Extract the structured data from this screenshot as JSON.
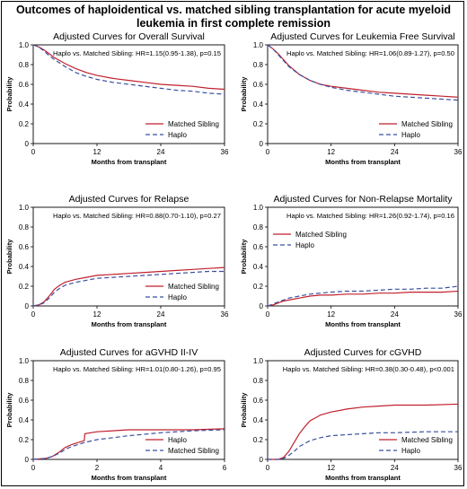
{
  "figure": {
    "title_line1": "Outcomes of haploidentical vs. matched sibling transplantation for acute myeloid",
    "title_line2": "leukemia in first complete remission"
  },
  "colors": {
    "matched_sibling": "#c0202e",
    "haplo": "#3a4fa0",
    "axis": "#000000"
  },
  "chart_data": [
    {
      "type": "line",
      "title": "Adjusted Curves for Overall Survival",
      "annotation": "Haplo vs. Matched Sibling: HR=1.15(0.95-1.38), p=0.15",
      "xlabel": "Months from transplant",
      "ylabel": "Probability",
      "xlim": [
        0,
        36
      ],
      "ylim": [
        0,
        1
      ],
      "xticks": [
        0,
        12,
        24,
        36
      ],
      "yticks": [
        0,
        0.2,
        0.4,
        0.6,
        0.8,
        1.0
      ],
      "ytick_labels": [
        "0",
        "0.2",
        "0.4",
        "0.6",
        "0.8",
        "1.0"
      ],
      "legend_position": "bottom-right",
      "legend_order": [
        "Matched Sibling",
        "Haplo"
      ],
      "series": [
        {
          "name": "Matched Sibling",
          "style": "solid",
          "color": "#c0202e",
          "x": [
            0,
            1,
            2,
            3,
            4,
            6,
            8,
            10,
            12,
            15,
            18,
            21,
            24,
            27,
            30,
            33,
            36
          ],
          "y": [
            1.0,
            0.98,
            0.95,
            0.91,
            0.87,
            0.81,
            0.76,
            0.72,
            0.69,
            0.66,
            0.64,
            0.62,
            0.6,
            0.59,
            0.58,
            0.56,
            0.55
          ]
        },
        {
          "name": "Haplo",
          "style": "dashed",
          "color": "#3a4fa0",
          "x": [
            0,
            1,
            2,
            3,
            4,
            6,
            8,
            10,
            12,
            15,
            18,
            21,
            24,
            27,
            30,
            33,
            36
          ],
          "y": [
            1.0,
            0.98,
            0.94,
            0.89,
            0.85,
            0.78,
            0.72,
            0.68,
            0.65,
            0.62,
            0.6,
            0.58,
            0.56,
            0.54,
            0.53,
            0.51,
            0.5
          ]
        }
      ]
    },
    {
      "type": "line",
      "title": "Adjusted Curves for Leukemia Free Survival",
      "annotation": "Haplo vs. Matched Sibling: HR=1.06(0.89-1.27), p=0.50",
      "xlabel": "Months from transplant",
      "ylabel": "Probability",
      "xlim": [
        0,
        36
      ],
      "ylim": [
        0,
        1
      ],
      "xticks": [
        0,
        12,
        24,
        36
      ],
      "yticks": [
        0,
        0.2,
        0.4,
        0.6,
        0.8,
        1.0
      ],
      "ytick_labels": [
        "0",
        "0.2",
        "0.4",
        "0.6",
        "0.8",
        "1.0"
      ],
      "legend_position": "bottom-right",
      "legend_order": [
        "Matched Sibling",
        "Haplo"
      ],
      "series": [
        {
          "name": "Matched Sibling",
          "style": "solid",
          "color": "#c0202e",
          "x": [
            0,
            1,
            2,
            3,
            4,
            6,
            8,
            10,
            12,
            15,
            18,
            21,
            24,
            27,
            30,
            33,
            36
          ],
          "y": [
            1.0,
            0.96,
            0.91,
            0.85,
            0.79,
            0.7,
            0.64,
            0.6,
            0.58,
            0.56,
            0.54,
            0.52,
            0.51,
            0.5,
            0.49,
            0.48,
            0.47
          ]
        },
        {
          "name": "Haplo",
          "style": "dashed",
          "color": "#3a4fa0",
          "x": [
            0,
            1,
            2,
            3,
            4,
            6,
            8,
            10,
            12,
            15,
            18,
            21,
            24,
            27,
            30,
            33,
            36
          ],
          "y": [
            1.0,
            0.96,
            0.9,
            0.84,
            0.78,
            0.7,
            0.64,
            0.6,
            0.57,
            0.54,
            0.52,
            0.5,
            0.48,
            0.47,
            0.46,
            0.45,
            0.44
          ]
        }
      ]
    },
    {
      "type": "line",
      "title": "Adjusted Curves for Relapse",
      "annotation": "Haplo vs. Matched Sibling: HR=0.88(0.70-1.10), p=0.27",
      "xlabel": "Months from transplant",
      "ylabel": "Probability",
      "xlim": [
        0,
        36
      ],
      "ylim": [
        0,
        1
      ],
      "xticks": [
        0,
        12,
        24,
        36
      ],
      "yticks": [
        0,
        0.2,
        0.4,
        0.6,
        0.8,
        1.0
      ],
      "ytick_labels": [
        "0",
        "0.2",
        "0.4",
        "0.6",
        "0.8",
        "1.0"
      ],
      "legend_position": "bottom-right",
      "legend_order": [
        "Matched Sibling",
        "Haplo"
      ],
      "series": [
        {
          "name": "Matched Sibling",
          "style": "solid",
          "color": "#c0202e",
          "x": [
            0,
            1,
            2,
            3,
            4,
            5,
            6,
            8,
            10,
            12,
            15,
            18,
            21,
            24,
            27,
            30,
            33,
            36
          ],
          "y": [
            0,
            0.01,
            0.04,
            0.1,
            0.17,
            0.21,
            0.24,
            0.27,
            0.29,
            0.31,
            0.32,
            0.33,
            0.34,
            0.35,
            0.36,
            0.37,
            0.38,
            0.39
          ]
        },
        {
          "name": "Haplo",
          "style": "dashed",
          "color": "#3a4fa0",
          "x": [
            0,
            1,
            2,
            3,
            4,
            5,
            6,
            8,
            10,
            12,
            15,
            18,
            21,
            24,
            27,
            30,
            33,
            36
          ],
          "y": [
            0,
            0.01,
            0.03,
            0.08,
            0.14,
            0.18,
            0.21,
            0.24,
            0.26,
            0.28,
            0.29,
            0.3,
            0.31,
            0.32,
            0.33,
            0.34,
            0.35,
            0.35
          ]
        }
      ]
    },
    {
      "type": "line",
      "title": "Adjusted Curves for Non-Relapse Mortality",
      "annotation": "Haplo vs. Matched Sibling: HR=1.26(0.92-1.74), p=0.16",
      "xlabel": "Months from transplant",
      "ylabel": "Probability",
      "xlim": [
        0,
        36
      ],
      "ylim": [
        0,
        1
      ],
      "xticks": [
        0,
        12,
        24,
        36
      ],
      "yticks": [
        0,
        0.2,
        0.4,
        0.6,
        0.8,
        1.0
      ],
      "ytick_labels": [
        "0",
        "0.2",
        "0.4",
        "0.6",
        "0.8",
        "1.0"
      ],
      "legend_position": "top-left",
      "legend_order": [
        "Matched Sibling",
        "Haplo"
      ],
      "series": [
        {
          "name": "Matched Sibling",
          "style": "solid",
          "color": "#c0202e",
          "x": [
            0,
            1,
            2,
            3,
            4,
            6,
            8,
            10,
            12,
            15,
            18,
            21,
            24,
            27,
            30,
            33,
            36
          ],
          "y": [
            0,
            0.01,
            0.03,
            0.05,
            0.06,
            0.08,
            0.1,
            0.11,
            0.11,
            0.12,
            0.12,
            0.13,
            0.13,
            0.14,
            0.14,
            0.14,
            0.15
          ]
        },
        {
          "name": "Haplo",
          "style": "dashed",
          "color": "#3a4fa0",
          "x": [
            0,
            1,
            2,
            3,
            4,
            6,
            8,
            10,
            12,
            15,
            18,
            21,
            24,
            27,
            30,
            33,
            36
          ],
          "y": [
            0,
            0.02,
            0.04,
            0.06,
            0.08,
            0.1,
            0.12,
            0.13,
            0.14,
            0.15,
            0.15,
            0.16,
            0.17,
            0.17,
            0.18,
            0.18,
            0.2
          ]
        }
      ]
    },
    {
      "type": "line",
      "title": "Adjusted Curves for aGVHD II-IV",
      "annotation": "Haplo vs. Matched Sibling: HR=1.01(0.80-1.26), p=0.95",
      "xlabel": "Months from transplant",
      "ylabel": "Probability",
      "xlim": [
        0,
        6
      ],
      "ylim": [
        0,
        1
      ],
      "xticks": [
        0,
        2,
        4,
        6
      ],
      "yticks": [
        0,
        0.2,
        0.4,
        0.6,
        0.8,
        1.0
      ],
      "ytick_labels": [
        "0",
        "0.2",
        "0.4",
        "0.6",
        "0.8",
        "1.0"
      ],
      "legend_position": "bottom-right",
      "legend_order": [
        "Haplo",
        "Matched Sibling"
      ],
      "series": [
        {
          "name": "Haplo",
          "style": "solid",
          "color": "#c0202e",
          "x": [
            0,
            0.4,
            0.6,
            0.8,
            1.0,
            1.2,
            1.4,
            1.6,
            1.62,
            2.0,
            2.5,
            3.0,
            4.0,
            5.0,
            6.0
          ],
          "y": [
            0,
            0.01,
            0.03,
            0.07,
            0.12,
            0.15,
            0.17,
            0.19,
            0.26,
            0.28,
            0.29,
            0.3,
            0.3,
            0.3,
            0.31
          ]
        },
        {
          "name": "Matched Sibling",
          "style": "dashed",
          "color": "#3a4fa0",
          "x": [
            0,
            0.4,
            0.6,
            0.8,
            1.0,
            1.2,
            1.4,
            1.6,
            2.0,
            2.5,
            3.0,
            4.0,
            5.0,
            6.0
          ],
          "y": [
            0,
            0.01,
            0.03,
            0.06,
            0.1,
            0.13,
            0.15,
            0.17,
            0.2,
            0.22,
            0.24,
            0.27,
            0.29,
            0.3
          ]
        }
      ]
    },
    {
      "type": "line",
      "title": "Adjusted Curves for cGVHD",
      "annotation": "Haplo vs. Matched Sibling: HR=0.38(0.30-0.48), p<0.001",
      "xlabel": "Months from transplant",
      "ylabel": "Probability",
      "xlim": [
        0,
        36
      ],
      "ylim": [
        0,
        1
      ],
      "xticks": [
        0,
        12,
        24,
        36
      ],
      "yticks": [
        0,
        0.2,
        0.4,
        0.6,
        0.8,
        1.0
      ],
      "ytick_labels": [
        "0",
        "0.2",
        "0.4",
        "0.6",
        "0.8",
        "1.0"
      ],
      "legend_position": "bottom-right",
      "legend_order": [
        "Matched Sibling",
        "Haplo"
      ],
      "series": [
        {
          "name": "Matched Sibling",
          "style": "solid",
          "color": "#c0202e",
          "x": [
            0,
            2,
            3,
            4,
            5,
            6,
            7,
            8,
            10,
            12,
            15,
            18,
            21,
            24,
            30,
            36
          ],
          "y": [
            0,
            0,
            0.02,
            0.08,
            0.17,
            0.26,
            0.33,
            0.39,
            0.45,
            0.48,
            0.51,
            0.53,
            0.54,
            0.55,
            0.55,
            0.56
          ]
        },
        {
          "name": "Haplo",
          "style": "dashed",
          "color": "#3a4fa0",
          "x": [
            0,
            2,
            3,
            4,
            5,
            6,
            7,
            8,
            10,
            12,
            15,
            18,
            21,
            24,
            30,
            36
          ],
          "y": [
            0,
            0,
            0.01,
            0.04,
            0.08,
            0.13,
            0.16,
            0.19,
            0.22,
            0.24,
            0.25,
            0.26,
            0.27,
            0.27,
            0.28,
            0.28
          ]
        }
      ]
    }
  ]
}
